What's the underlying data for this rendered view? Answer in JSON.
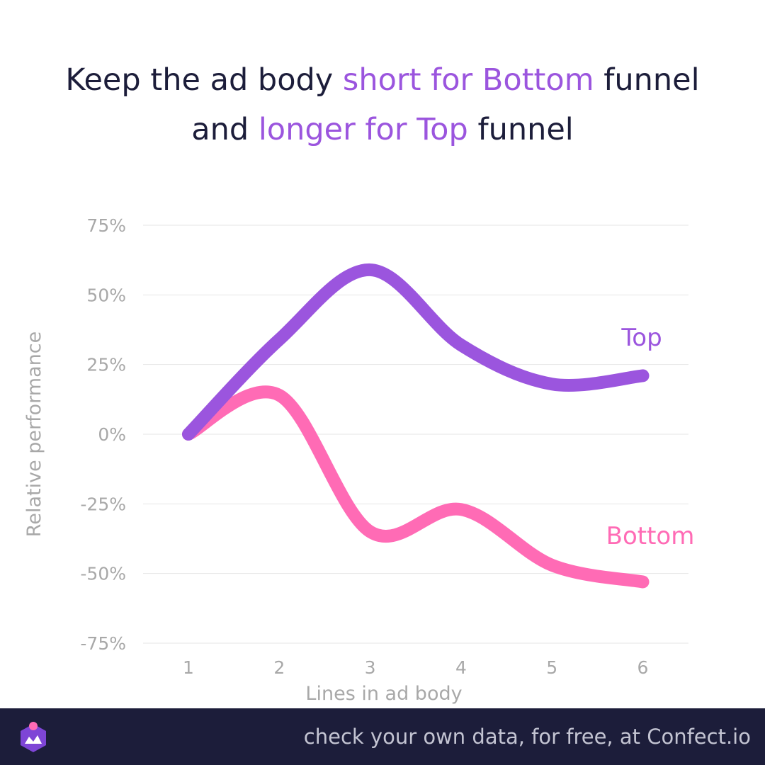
{
  "title": {
    "part1": "Keep the ad body ",
    "part2": "short for Bottom",
    "part3": " funnel",
    "part4": "and ",
    "part5": "longer for Top",
    "part6": " funnel"
  },
  "footer": {
    "text": "check your own data, for free, at Confect.io"
  },
  "colors": {
    "top": "#9b55de",
    "bottom": "#ff6bb5",
    "dark": "#1c1d3a",
    "axis_text": "#a8a8a8",
    "grid": "#e6e6e6"
  },
  "chart_data": {
    "type": "line",
    "xlabel": "Lines in ad body",
    "ylabel": "Relative performance",
    "x": [
      1,
      2,
      3,
      4,
      5,
      6
    ],
    "ylim": [
      -75,
      75
    ],
    "yticks": [
      75,
      50,
      25,
      0,
      -25,
      -50,
      -75
    ],
    "ytick_labels": [
      "75%",
      "50%",
      "25%",
      "0%",
      "-25%",
      "-50%",
      "-75%"
    ],
    "xtick_labels": [
      "1",
      "2",
      "3",
      "4",
      "5",
      "6"
    ],
    "grid": true,
    "series": [
      {
        "name": "Top",
        "values": [
          0,
          34,
          59,
          32,
          18,
          21
        ],
        "color": "#9b55de"
      },
      {
        "name": "Bottom",
        "values": [
          0,
          14,
          -35,
          -27,
          -47,
          -53
        ],
        "color": "#ff6bb5"
      }
    ]
  }
}
